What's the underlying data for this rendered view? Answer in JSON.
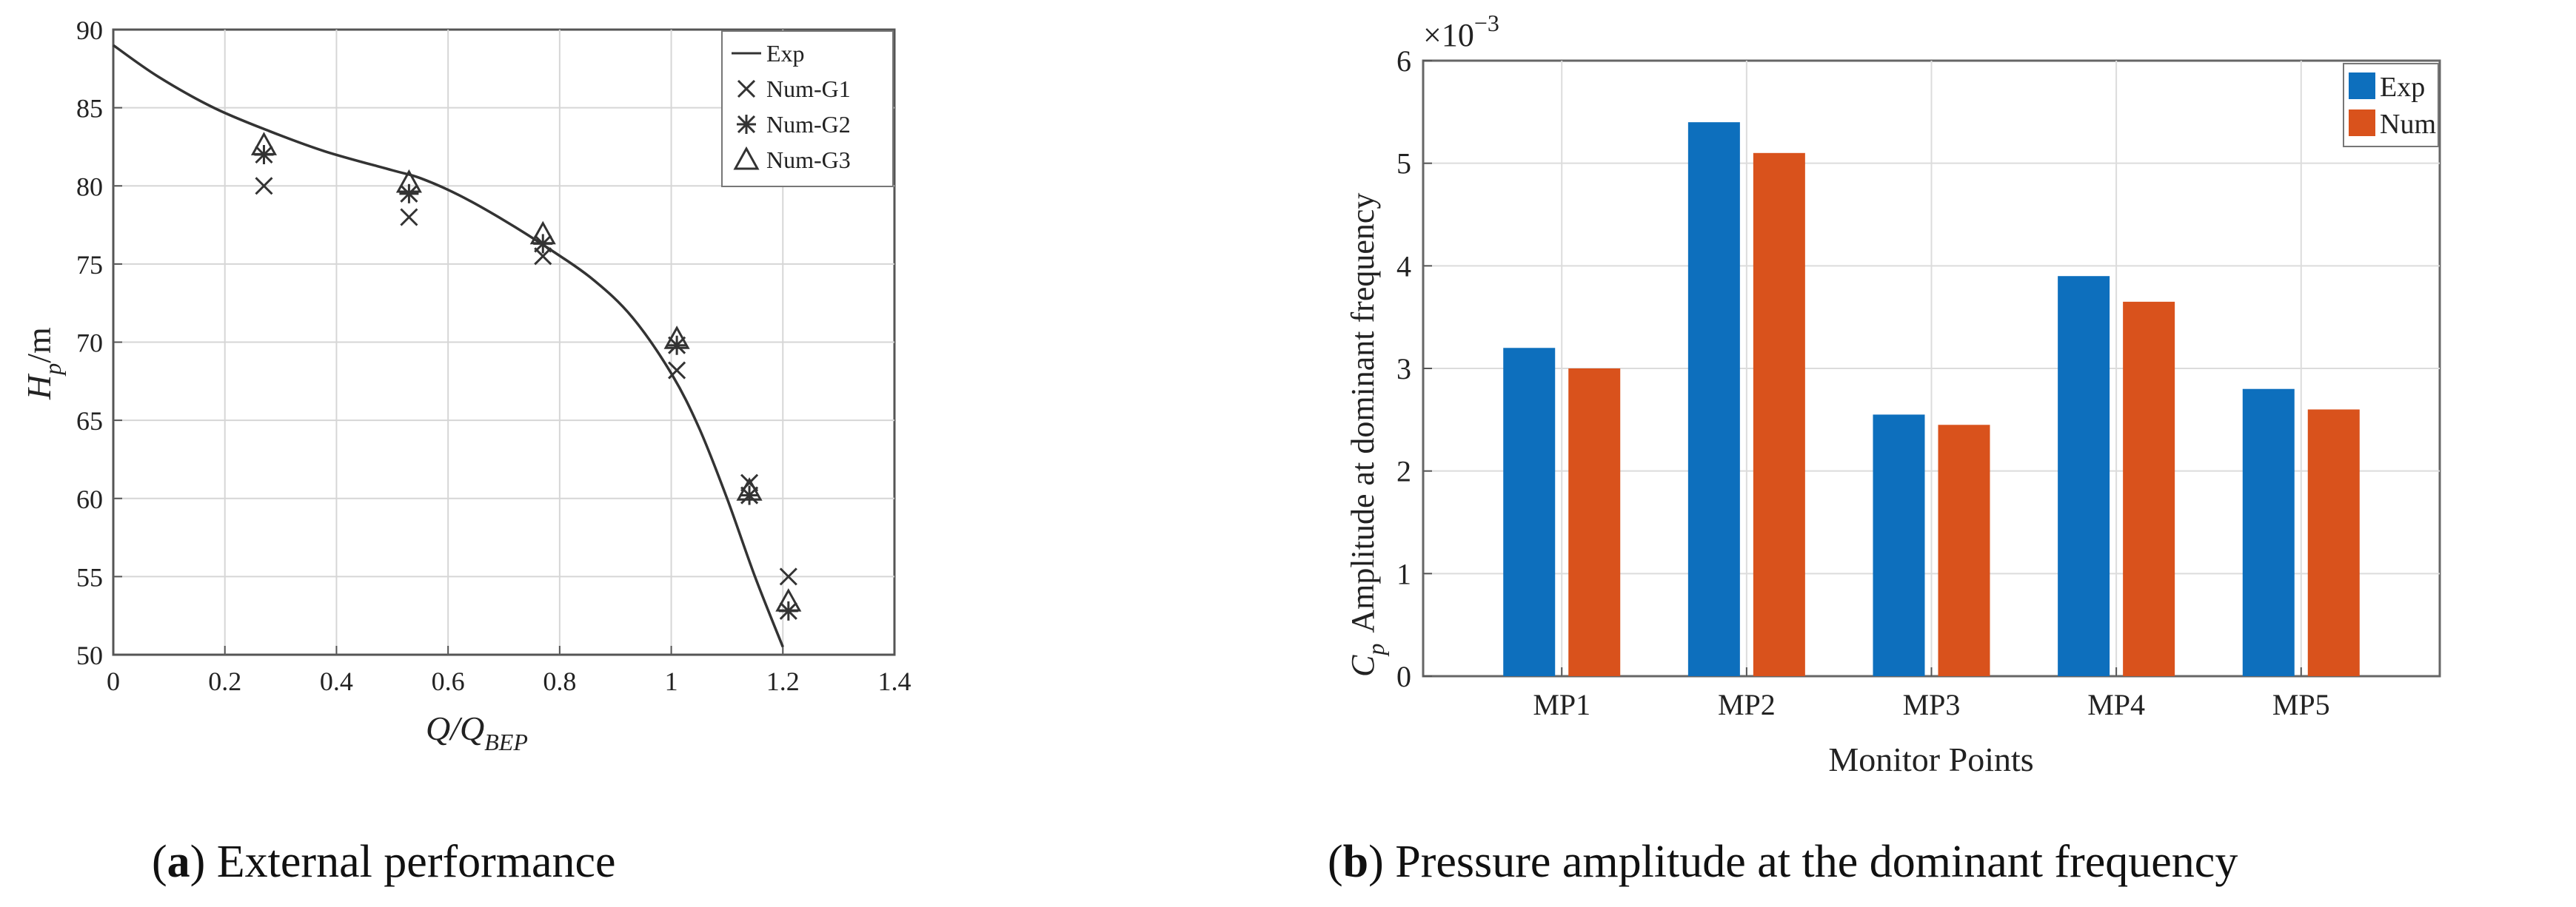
{
  "colors": {
    "exp": "#0d6fbd",
    "num": "#d9521c",
    "line": "#333333",
    "marker": "#333333"
  },
  "chart_data": [
    {
      "type": "scatter",
      "panel": "a",
      "caption_letter": "a",
      "caption_text": ") External performance",
      "xlabel_main": "Q/Q",
      "xlabel_sub": "BEP",
      "ylabel_main": "H",
      "ylabel_sub": "p",
      "ylabel_unit": "/m",
      "xlim": [
        0,
        1.4
      ],
      "ylim": [
        50,
        90
      ],
      "xticks": [
        "0",
        "0.2",
        "0.4",
        "0.6",
        "0.8",
        "1",
        "1.2",
        "1.4"
      ],
      "yticks": [
        "50",
        "55",
        "60",
        "65",
        "70",
        "75",
        "80",
        "85",
        "90"
      ],
      "legend_position": "top-right",
      "series": [
        {
          "name": "Exp",
          "kind": "line",
          "x": [
            0,
            0.08,
            0.18,
            0.28,
            0.38,
            0.5,
            0.55,
            0.62,
            0.7,
            0.78,
            0.86,
            0.93,
            1.0,
            1.05,
            1.1,
            1.15,
            1.2
          ],
          "y": [
            89,
            87,
            85,
            83.5,
            82.2,
            81,
            80.5,
            79.4,
            77.8,
            76,
            74,
            71.6,
            68,
            64.5,
            60,
            55,
            50.5
          ]
        },
        {
          "name": "Num-G1",
          "kind": "x",
          "x": [
            0.27,
            0.53,
            0.77,
            1.01,
            1.14,
            1.21
          ],
          "y": [
            80,
            78,
            75.5,
            68.2,
            61,
            55
          ]
        },
        {
          "name": "Num-G2",
          "kind": "star",
          "x": [
            0.27,
            0.53,
            0.77,
            1.01,
            1.14,
            1.21
          ],
          "y": [
            82,
            79.5,
            76.3,
            69.8,
            60.2,
            52.8
          ]
        },
        {
          "name": "Num-G3",
          "kind": "triangle",
          "x": [
            0.27,
            0.53,
            0.77,
            1.01,
            1.14,
            1.21
          ],
          "y": [
            82.6,
            80.2,
            76.9,
            70.2,
            60.5,
            53.4
          ]
        }
      ]
    },
    {
      "type": "bar",
      "panel": "b",
      "caption_letter": "b",
      "caption_text": ") Pressure amplitude at the dominant frequency",
      "xlabel": "Monitor Points",
      "ylabel_main": "C",
      "ylabel_sub": "p",
      "ylabel_rest": "Amplitude at dominant frequency",
      "scale_base": "×10",
      "scale_exp": "−3",
      "ylim": [
        0,
        6
      ],
      "yticks": [
        "0",
        "1",
        "2",
        "3",
        "4",
        "5",
        "6"
      ],
      "categories": [
        "MP1",
        "MP2",
        "MP3",
        "MP4",
        "MP5"
      ],
      "legend_position": "top-right",
      "series": [
        {
          "name": "Exp",
          "values": [
            3.2,
            5.4,
            2.55,
            3.9,
            2.8
          ]
        },
        {
          "name": "Num",
          "values": [
            3.0,
            5.1,
            2.45,
            3.65,
            2.6
          ]
        }
      ]
    }
  ]
}
